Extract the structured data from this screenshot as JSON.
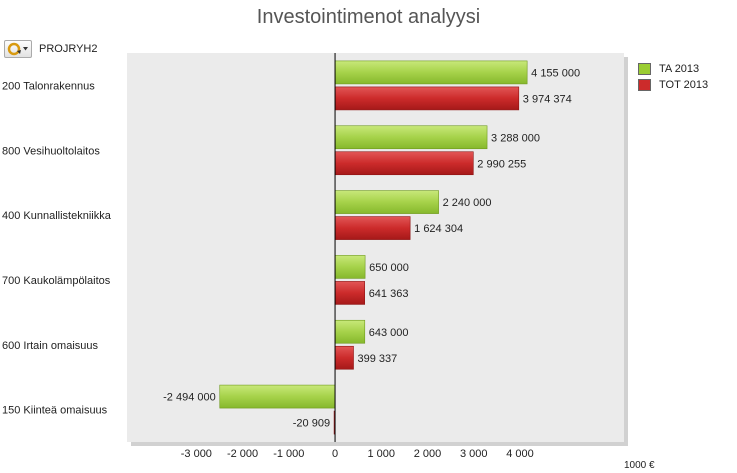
{
  "toolbar": {
    "dimension_label": "PROJRYH2",
    "dimension_button_icon": "cycle-dimension-icon"
  },
  "chart_data": {
    "type": "bar",
    "orientation": "horizontal",
    "title": "Investointimenot analyysi",
    "unit_label": "1000 €",
    "categories": [
      "200 Talonrakennus",
      "800 Vesihuoltolaitos",
      "400 Kunnallistekniikka",
      "700 Kaukolämpölaitos",
      "600 Irtain omaisuus",
      "150 Kiinteä omaisuus"
    ],
    "series": [
      {
        "name": "TA 2013",
        "color": "#9acd32",
        "values": [
          4155000,
          3288000,
          2240000,
          650000,
          643000,
          -2494000
        ],
        "labels": [
          "4 155 000",
          "3 288 000",
          "2 240 000",
          "650 000",
          "643 000",
          "-2 494 000"
        ]
      },
      {
        "name": "TOT 2013",
        "color": "#cc2b2b",
        "values": [
          3974374,
          2990255,
          1624304,
          641363,
          399337,
          -20909
        ],
        "labels": [
          "3 974 374",
          "2 990 255",
          "1 624 304",
          "641 363",
          "399 337",
          "-20 909"
        ]
      }
    ],
    "x_ticks": [
      -3000,
      -2000,
      -1000,
      0,
      1000,
      2000,
      3000,
      4000
    ],
    "x_tick_labels": [
      "-3 000",
      "-2 000",
      "-1 000",
      "0",
      "1 000",
      "2 000",
      "3 000",
      "4 000"
    ],
    "xlim": [
      -4500,
      6250
    ],
    "value_scale": 1000,
    "grid": false,
    "legend_position": "top-right"
  }
}
